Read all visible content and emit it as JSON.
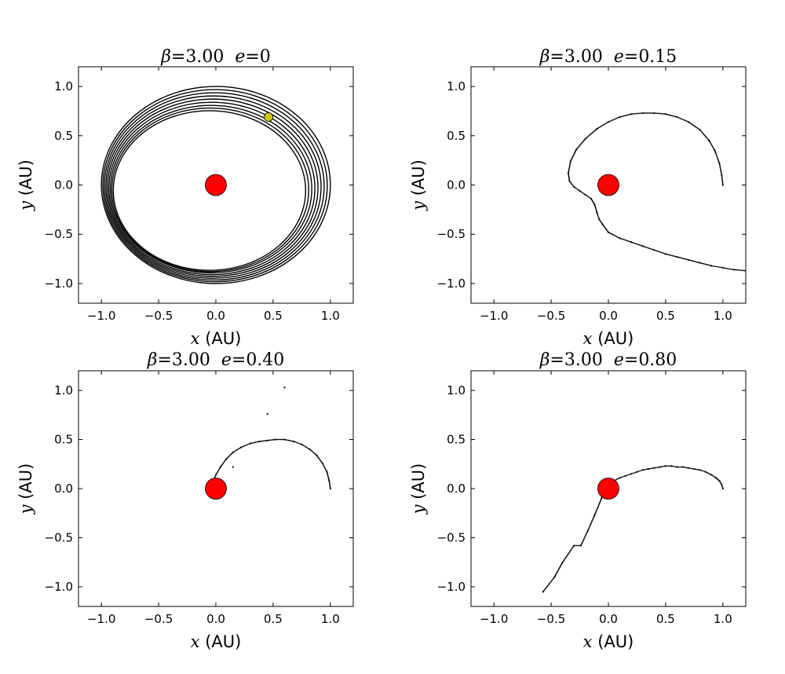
{
  "chart_data": [
    {
      "type": "scatter",
      "title": {
        "beta_symbol": "β",
        "equals": "=",
        "beta_value": "3.00",
        "e_symbol": "e",
        "e_value": "0"
      },
      "xlabel": {
        "var": "x",
        "unit": "(AU)"
      },
      "ylabel": {
        "var": "y",
        "unit": "(AU)"
      },
      "xlim": [
        -1.2,
        1.2
      ],
      "ylim": [
        -1.2,
        1.2
      ],
      "xticks": [
        -1.0,
        -0.5,
        0.0,
        0.5,
        1.0
      ],
      "yticks": [
        -1.0,
        -0.5,
        0.0,
        0.5,
        1.0
      ],
      "xtick_labels": [
        "−1.0",
        "−0.5",
        "0.0",
        "0.5",
        "1.0"
      ],
      "ytick_labels": [
        "−1.0",
        "−0.5",
        "0.0",
        "0.5",
        "1.0"
      ],
      "sun": {
        "x": 0.0,
        "y": 0.0,
        "color": "#ff0000"
      },
      "particle": {
        "x": 0.46,
        "y": 0.69,
        "color": "#c8c800"
      },
      "rings": [
        {
          "rx": 1.0,
          "ry": 1.0,
          "cx": 0.0,
          "cy": 0.0
        },
        {
          "rx": 0.98,
          "ry": 0.975,
          "cx": -0.007,
          "cy": -0.007
        },
        {
          "rx": 0.96,
          "ry": 0.95,
          "cx": -0.014,
          "cy": -0.014
        },
        {
          "rx": 0.94,
          "ry": 0.925,
          "cx": -0.021,
          "cy": -0.021
        },
        {
          "rx": 0.92,
          "ry": 0.9,
          "cx": -0.028,
          "cy": -0.028
        },
        {
          "rx": 0.9,
          "ry": 0.875,
          "cx": -0.035,
          "cy": -0.035
        },
        {
          "rx": 0.88,
          "ry": 0.85,
          "cx": -0.042,
          "cy": -0.042
        },
        {
          "rx": 0.86,
          "ry": 0.83,
          "cx": -0.049,
          "cy": -0.049
        },
        {
          "rx": 0.84,
          "ry": 0.81,
          "cx": -0.056,
          "cy": -0.056
        }
      ],
      "series": []
    },
    {
      "type": "scatter",
      "title": {
        "beta_symbol": "β",
        "equals": "=",
        "beta_value": "3.00",
        "e_symbol": "e",
        "e_value": "0.15"
      },
      "xlabel": {
        "var": "x",
        "unit": "(AU)"
      },
      "ylabel": {
        "var": "y",
        "unit": "(AU)"
      },
      "xlim": [
        -1.2,
        1.2
      ],
      "ylim": [
        -1.2,
        1.2
      ],
      "xticks": [
        -1.0,
        -0.5,
        0.0,
        0.5,
        1.0
      ],
      "yticks": [
        -1.0,
        -0.5,
        0.0,
        0.5,
        1.0
      ],
      "xtick_labels": [
        "−1.0",
        "−0.5",
        "0.0",
        "0.5",
        "1.0"
      ],
      "ytick_labels": [
        "−1.0",
        "−0.5",
        "0.0",
        "0.5",
        "1.0"
      ],
      "sun": {
        "x": 0.0,
        "y": 0.0,
        "color": "#ff0000"
      },
      "particle": null,
      "rings": [],
      "series": [
        {
          "x": [
            1.0,
            0.99,
            0.97,
            0.93,
            0.88,
            0.8,
            0.7,
            0.6,
            0.5,
            0.4,
            0.3,
            0.2,
            0.1,
            0.0,
            -0.1,
            -0.2,
            -0.28,
            -0.33,
            -0.35,
            -0.34,
            -0.3,
            -0.25,
            -0.2,
            -0.15,
            -0.12,
            -0.1,
            -0.08,
            -0.05,
            0.0,
            0.1,
            0.2,
            0.3,
            0.4,
            0.5,
            0.6,
            0.7,
            0.8,
            0.9,
            1.0,
            1.1,
            1.2
          ],
          "y": [
            0.0,
            0.1,
            0.22,
            0.35,
            0.45,
            0.56,
            0.64,
            0.69,
            0.72,
            0.73,
            0.73,
            0.72,
            0.69,
            0.64,
            0.57,
            0.47,
            0.36,
            0.24,
            0.12,
            0.04,
            -0.02,
            -0.06,
            -0.1,
            -0.14,
            -0.2,
            -0.28,
            -0.35,
            -0.4,
            -0.48,
            -0.54,
            -0.58,
            -0.62,
            -0.66,
            -0.7,
            -0.73,
            -0.76,
            -0.79,
            -0.82,
            -0.84,
            -0.86,
            -0.87
          ]
        }
      ]
    },
    {
      "type": "scatter",
      "title": {
        "beta_symbol": "β",
        "equals": "=",
        "beta_value": "3.00",
        "e_symbol": "e",
        "e_value": "0.40"
      },
      "xlabel": {
        "var": "x",
        "unit": "(AU)"
      },
      "ylabel": {
        "var": "y",
        "unit": "(AU)"
      },
      "xlim": [
        -1.2,
        1.2
      ],
      "ylim": [
        -1.2,
        1.2
      ],
      "xticks": [
        -1.0,
        -0.5,
        0.0,
        0.5,
        1.0
      ],
      "yticks": [
        -1.0,
        -0.5,
        0.0,
        0.5,
        1.0
      ],
      "xtick_labels": [
        "−1.0",
        "−0.5",
        "0.0",
        "0.5",
        "1.0"
      ],
      "ytick_labels": [
        "−1.0",
        "−0.5",
        "0.0",
        "0.5",
        "1.0"
      ],
      "sun": {
        "x": 0.0,
        "y": 0.0,
        "color": "#ff0000"
      },
      "particle": null,
      "rings": [],
      "series": [
        {
          "x": [
            1.0,
            0.99,
            0.97,
            0.93,
            0.88,
            0.82,
            0.75,
            0.68,
            0.6,
            0.52,
            0.45,
            0.38,
            0.3,
            0.22,
            0.15,
            0.09,
            0.04,
            0.0,
            -0.02,
            -0.02,
            0.15,
            0.45,
            0.6
          ],
          "y": [
            0.0,
            0.08,
            0.17,
            0.26,
            0.34,
            0.4,
            0.45,
            0.48,
            0.5,
            0.5,
            0.49,
            0.48,
            0.46,
            0.42,
            0.37,
            0.3,
            0.22,
            0.14,
            0.08,
            0.05,
            0.22,
            0.76,
            1.03
          ]
        }
      ]
    },
    {
      "type": "scatter",
      "title": {
        "beta_symbol": "β",
        "equals": "=",
        "beta_value": "3.00",
        "e_symbol": "e",
        "e_value": "0.80"
      },
      "xlabel": {
        "var": "x",
        "unit": "(AU)"
      },
      "ylabel": {
        "var": "y",
        "unit": "(AU)"
      },
      "xlim": [
        -1.2,
        1.2
      ],
      "ylim": [
        -1.2,
        1.2
      ],
      "xticks": [
        -1.0,
        -0.5,
        0.0,
        0.5,
        1.0
      ],
      "yticks": [
        -1.0,
        -0.5,
        0.0,
        0.5,
        1.0
      ],
      "xtick_labels": [
        "−1.0",
        "−0.5",
        "0.0",
        "0.5",
        "1.0"
      ],
      "ytick_labels": [
        "−1.0",
        "−0.5",
        "0.0",
        "0.5",
        "1.0"
      ],
      "sun": {
        "x": 0.0,
        "y": 0.0,
        "color": "#ff0000"
      },
      "particle": null,
      "rings": [],
      "series": [
        {
          "x": [
            1.0,
            0.99,
            0.97,
            0.94,
            0.9,
            0.85,
            0.8,
            0.75,
            0.7,
            0.65,
            0.6,
            0.55,
            0.5,
            0.45,
            0.4,
            0.35,
            0.3,
            0.25,
            0.2,
            0.15,
            0.1,
            0.05,
            0.0,
            -0.06,
            -0.12,
            -0.18,
            -0.24,
            -0.3,
            -0.4,
            -0.47,
            -0.57
          ],
          "y": [
            0.0,
            0.04,
            0.08,
            0.11,
            0.14,
            0.17,
            0.19,
            0.2,
            0.21,
            0.22,
            0.22,
            0.23,
            0.23,
            0.22,
            0.21,
            0.2,
            0.19,
            0.17,
            0.15,
            0.13,
            0.11,
            0.08,
            0.05,
            -0.1,
            -0.27,
            -0.43,
            -0.58,
            -0.58,
            -0.75,
            -0.9,
            -1.05
          ]
        }
      ]
    }
  ]
}
